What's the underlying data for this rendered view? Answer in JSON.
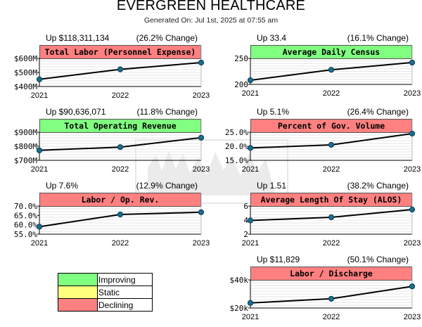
{
  "header": {
    "title": "EVERGREEN HEALTHCARE",
    "subtitle": "Generated On: Jul 1st, 2025 at 07:55 am"
  },
  "legend": [
    {
      "label": "Improving",
      "color": "#80ff80"
    },
    {
      "label": "Static",
      "color": "#ffff80"
    },
    {
      "label": "Declining",
      "color": "#ff8080"
    }
  ],
  "colors": {
    "improving": "#80ff80",
    "declining": "#ff8080",
    "line": "#000000",
    "marker": "#1a6e8e"
  },
  "chart_data": [
    {
      "type": "line",
      "title": "Total Labor (Personnel Expense)",
      "status": "declining",
      "summary_left": "Up $118,311,134",
      "summary_right": "(26.2% Change)",
      "categories": [
        "2021",
        "2022",
        "2023"
      ],
      "values": [
        451,
        522,
        570
      ],
      "value_unit": "$ millions",
      "ylim": [
        400,
        600
      ],
      "yticks": [
        400,
        500,
        600
      ],
      "ytick_labels": [
        "$400M",
        "$500M",
        "$600M"
      ],
      "grid": true
    },
    {
      "type": "line",
      "title": "Average Daily Census",
      "status": "improving",
      "summary_left": "Up 33.4",
      "summary_right": "(16.1% Change)",
      "categories": [
        "2021",
        "2022",
        "2023"
      ],
      "values": [
        208,
        228,
        242
      ],
      "ylim": [
        200,
        250
      ],
      "yticks": [
        200,
        250
      ],
      "ytick_labels": [
        "200",
        "250"
      ],
      "grid": true
    },
    {
      "type": "line",
      "title": "Total Operating Revenue",
      "status": "improving",
      "summary_left": "Up $90,636,071",
      "summary_right": "(11.8% Change)",
      "categories": [
        "2021",
        "2022",
        "2023"
      ],
      "values": [
        771,
        794,
        861
      ],
      "value_unit": "$ millions",
      "ylim": [
        700,
        900
      ],
      "yticks": [
        700,
        800,
        900
      ],
      "ytick_labels": [
        "$700M",
        "$800M",
        "$900M"
      ],
      "grid": true
    },
    {
      "type": "line",
      "title": "Percent of Gov. Volume",
      "status": "declining",
      "summary_left": "Up 5.1%",
      "summary_right": "(26.4% Change)",
      "categories": [
        "2021",
        "2022",
        "2023"
      ],
      "values": [
        19.4,
        20.5,
        24.5
      ],
      "value_unit": "%",
      "ylim": [
        15,
        25
      ],
      "yticks": [
        15,
        20,
        25
      ],
      "ytick_labels": [
        "15.0%",
        "20.0%",
        "25.0%"
      ],
      "grid": true
    },
    {
      "type": "line",
      "title": "Labor / Op. Rev.",
      "status": "declining",
      "summary_left": "Up 7.6%",
      "summary_right": "(12.9% Change)",
      "categories": [
        "2021",
        "2022",
        "2023"
      ],
      "values": [
        59.0,
        65.5,
        66.7
      ],
      "value_unit": "%",
      "ylim": [
        55,
        70
      ],
      "yticks": [
        55,
        60,
        65,
        70
      ],
      "ytick_labels": [
        "55.0%",
        "60.0%",
        "65.0%",
        "70.0%"
      ],
      "grid": true
    },
    {
      "type": "line",
      "title": "Average Length Of Stay (ALOS)",
      "status": "declining",
      "summary_left": "Up 1.51",
      "summary_right": "(38.2% Change)",
      "categories": [
        "2021",
        "2022",
        "2023"
      ],
      "values": [
        3.95,
        4.4,
        5.5
      ],
      "ylim": [
        2,
        6
      ],
      "yticks": [
        2,
        4,
        6
      ],
      "ytick_labels": [
        "2",
        "4",
        "6"
      ],
      "grid": true
    },
    {
      "type": "line",
      "title": "Labor / Discharge",
      "status": "declining",
      "summary_left": "Up $11,829",
      "summary_right": "(50.1% Change)",
      "categories": [
        "2021",
        "2022",
        "2023"
      ],
      "values": [
        23.6,
        26.6,
        35.4
      ],
      "value_unit": "$ thousands",
      "ylim": [
        20,
        40
      ],
      "yticks": [
        20,
        40
      ],
      "ytick_labels": [
        "$20k",
        "$40k"
      ],
      "grid": true
    }
  ]
}
